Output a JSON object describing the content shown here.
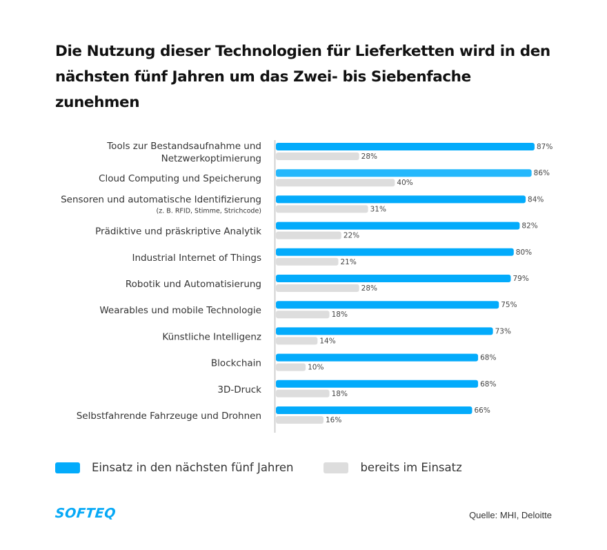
{
  "colors": {
    "primary": "#03abfb",
    "primary_alt": "#25b8fc",
    "secondary": "#dddddd",
    "axis": "#d0d0d0"
  },
  "brand": {
    "logo_text": "SOFTEQ"
  },
  "source": "Quelle: MHI, Deloitte",
  "chart_data": {
    "type": "bar",
    "orientation": "horizontal",
    "title": "Die Nutzung dieser Technologien für Lieferketten wird in den nächsten fünf Jahren um das Zwei- bis Siebenfache zunehmen",
    "xlabel": "",
    "ylabel": "",
    "xlim": [
      0,
      100
    ],
    "grid": false,
    "legend_position": "bottom-left",
    "value_suffix": "%",
    "categories": [
      {
        "label": [
          "Tools zur Bestandsaufnahme und",
          "Netzwerkoptimierung"
        ],
        "sublabel": ""
      },
      {
        "label": [
          "Cloud Computing und Speicherung"
        ],
        "sublabel": ""
      },
      {
        "label": [
          "Sensoren und automatische Identifizierung"
        ],
        "sublabel": "(z. B. RFID, Stimme, Strichcode)"
      },
      {
        "label": [
          "Prädiktive und präskriptive Analytik"
        ],
        "sublabel": ""
      },
      {
        "label": [
          "Industrial Internet of Things"
        ],
        "sublabel": ""
      },
      {
        "label": [
          "Robotik und Automatisierung"
        ],
        "sublabel": ""
      },
      {
        "label": [
          "Wearables und mobile Technologie"
        ],
        "sublabel": ""
      },
      {
        "label": [
          "Künstliche Intelligenz"
        ],
        "sublabel": ""
      },
      {
        "label": [
          "Blockchain"
        ],
        "sublabel": ""
      },
      {
        "label": [
          "3D-Druck"
        ],
        "sublabel": ""
      },
      {
        "label": [
          "Selbstfahrende Fahrzeuge und Drohnen"
        ],
        "sublabel": ""
      }
    ],
    "series": [
      {
        "name": "Einsatz in den nächsten fünf Jahren",
        "color": "#03abfb",
        "values": [
          87,
          86,
          84,
          82,
          80,
          79,
          75,
          73,
          68,
          68,
          66
        ]
      },
      {
        "name": "bereits im Einsatz",
        "color": "#dddddd",
        "values": [
          28,
          40,
          31,
          22,
          21,
          28,
          18,
          14,
          10,
          18,
          16
        ]
      }
    ]
  }
}
